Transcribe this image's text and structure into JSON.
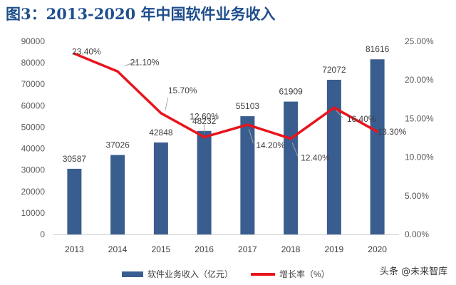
{
  "title": "图3：2013-2020 年中国软件业务收入",
  "watermark": "头条 @未来智库",
  "chart_data": {
    "type": "bar",
    "categories": [
      "2013",
      "2014",
      "2015",
      "2016",
      "2017",
      "2018",
      "2019",
      "2020"
    ],
    "series": [
      {
        "name": "软件业务收入（亿元）",
        "type": "bar",
        "axis": "left",
        "values": [
          30587,
          37026,
          42848,
          48232,
          55103,
          61909,
          72072,
          81616
        ],
        "labels": [
          "30587",
          "37026",
          "42848",
          "48232",
          "55103",
          "61909",
          "72072",
          "81616"
        ]
      },
      {
        "name": "增长率（%）",
        "type": "line",
        "axis": "right",
        "values": [
          23.4,
          21.1,
          15.7,
          12.6,
          14.2,
          12.4,
          16.4,
          13.3
        ],
        "labels": [
          "23.40%",
          "21.10%",
          "15.70%",
          "12.60%",
          "14.20%",
          "12.40%",
          "16.40%",
          "13.30%"
        ]
      }
    ],
    "ylim_left": [
      0,
      90000
    ],
    "yticks_left": [
      "0",
      "10000",
      "20000",
      "30000",
      "40000",
      "50000",
      "60000",
      "70000",
      "80000",
      "90000"
    ],
    "ylim_right": [
      0,
      25
    ],
    "yticks_right": [
      "0.00%",
      "5.00%",
      "10.00%",
      "15.00%",
      "20.00%",
      "25.00%"
    ],
    "legend_position": "bottom",
    "grid": false,
    "colors": {
      "bar": "#3a5d8f",
      "line": "#e8141c",
      "title": "#1f4e8c"
    }
  }
}
